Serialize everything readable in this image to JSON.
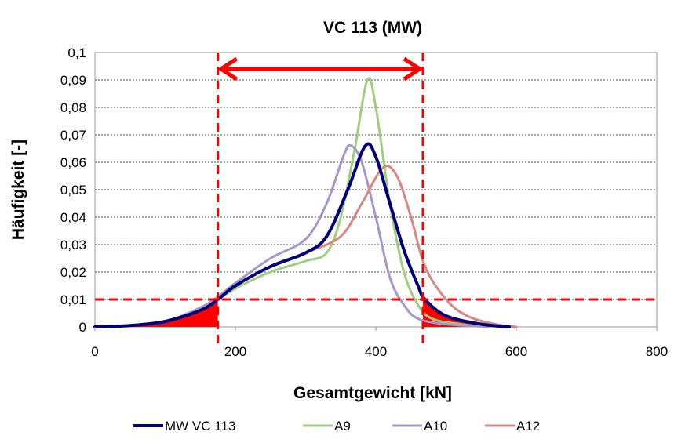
{
  "chart_data": {
    "type": "line",
    "title": "VC 113 (MW)",
    "xlabel": "Gesamtgewicht [kN]",
    "ylabel": "Häufigkeit  [-]",
    "xlim": [
      0,
      800
    ],
    "ylim": [
      0,
      0.1
    ],
    "x_ticks": [
      "0",
      "200",
      "400",
      "600",
      "800"
    ],
    "y_ticks": [
      "0",
      "0,01",
      "0,02",
      "0,03",
      "0,04",
      "0,05",
      "0,06",
      "0,07",
      "0,08",
      "0,09",
      "0,1"
    ],
    "grid": "horizontal dotted",
    "legend_position": "bottom",
    "series": [
      {
        "name": "MW VC 113",
        "color": "#00007a",
        "points": [
          [
            0,
            0
          ],
          [
            50,
            0.0005
          ],
          [
            100,
            0.002
          ],
          [
            150,
            0.006
          ],
          [
            175,
            0.01
          ],
          [
            200,
            0.015
          ],
          [
            250,
            0.022
          ],
          [
            300,
            0.027
          ],
          [
            330,
            0.033
          ],
          [
            360,
            0.05
          ],
          [
            385,
            0.066
          ],
          [
            400,
            0.062
          ],
          [
            420,
            0.045
          ],
          [
            440,
            0.028
          ],
          [
            460,
            0.015
          ],
          [
            470,
            0.01
          ],
          [
            500,
            0.004
          ],
          [
            550,
            0.001
          ],
          [
            590,
            0
          ]
        ]
      },
      {
        "name": "A9",
        "color": "#9fce7c",
        "points": [
          [
            0,
            0
          ],
          [
            50,
            0.0005
          ],
          [
            100,
            0.002
          ],
          [
            150,
            0.006
          ],
          [
            175,
            0.01
          ],
          [
            200,
            0.014
          ],
          [
            250,
            0.02
          ],
          [
            300,
            0.024
          ],
          [
            330,
            0.027
          ],
          [
            350,
            0.04
          ],
          [
            370,
            0.065
          ],
          [
            388,
            0.09
          ],
          [
            400,
            0.08
          ],
          [
            420,
            0.045
          ],
          [
            440,
            0.02
          ],
          [
            460,
            0.008
          ],
          [
            480,
            0.003
          ],
          [
            520,
            0.001
          ],
          [
            560,
            0
          ]
        ]
      },
      {
        "name": "A10",
        "color": "#a797c8",
        "points": [
          [
            0,
            0
          ],
          [
            50,
            0.0005
          ],
          [
            100,
            0.002
          ],
          [
            150,
            0.007
          ],
          [
            175,
            0.011
          ],
          [
            200,
            0.016
          ],
          [
            250,
            0.025
          ],
          [
            300,
            0.032
          ],
          [
            330,
            0.045
          ],
          [
            355,
            0.063
          ],
          [
            365,
            0.066
          ],
          [
            380,
            0.06
          ],
          [
            400,
            0.04
          ],
          [
            420,
            0.018
          ],
          [
            440,
            0.008
          ],
          [
            460,
            0.003
          ],
          [
            500,
            0.001
          ],
          [
            560,
            0
          ]
        ]
      },
      {
        "name": "A12",
        "color": "#d88884",
        "points": [
          [
            0,
            0
          ],
          [
            50,
            0.0005
          ],
          [
            100,
            0.002
          ],
          [
            150,
            0.006
          ],
          [
            175,
            0.01
          ],
          [
            200,
            0.015
          ],
          [
            250,
            0.022
          ],
          [
            300,
            0.027
          ],
          [
            350,
            0.033
          ],
          [
            380,
            0.045
          ],
          [
            410,
            0.058
          ],
          [
            430,
            0.055
          ],
          [
            450,
            0.04
          ],
          [
            470,
            0.022
          ],
          [
            500,
            0.01
          ],
          [
            530,
            0.004
          ],
          [
            570,
            0.001
          ],
          [
            600,
            0
          ]
        ]
      }
    ],
    "annotations": {
      "threshold_y": 0.01,
      "bounds_x": [
        175,
        467
      ],
      "color": "#ff0000"
    }
  }
}
